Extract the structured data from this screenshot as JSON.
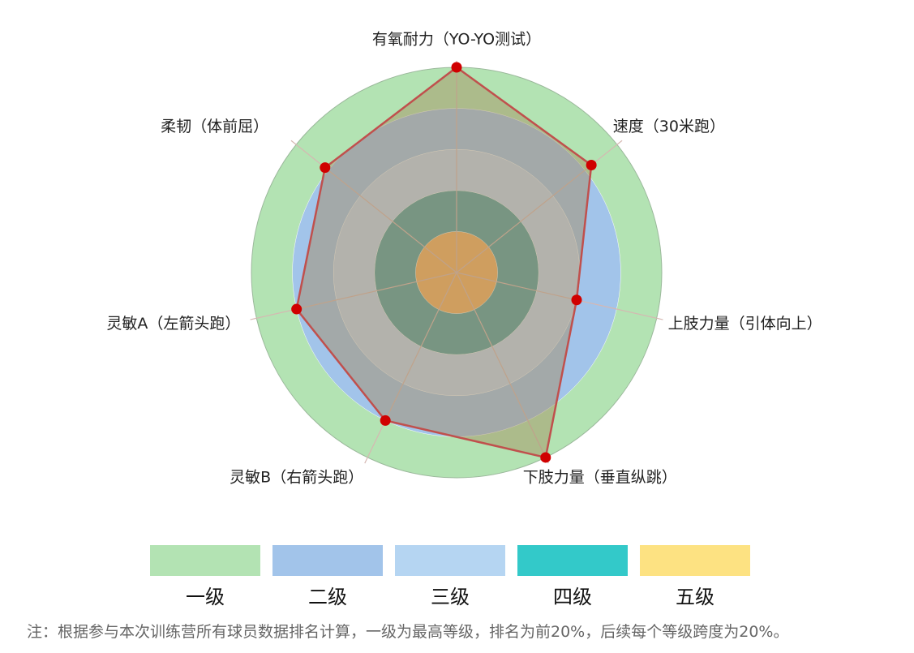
{
  "chart_data": {
    "type": "radar",
    "title": "",
    "axes": [
      "有氧耐力（YO-YO测试）",
      "速度（30米跑）",
      "上肢力量（引体向上）",
      "下肢力量（垂直纵跳）",
      "灵敏B（右箭头跑）",
      "灵敏A（左箭头跑）",
      "柔韧（体前屈）"
    ],
    "scale_max": 5,
    "levels": [
      {
        "label": "一级",
        "color": "#b3e3b3",
        "radius": 5
      },
      {
        "label": "二级",
        "color": "#a2c4ea",
        "radius": 4
      },
      {
        "label": "三级",
        "color": "#b5d5f2",
        "radius": 3
      },
      {
        "label": "四级",
        "color": "#33c9c9",
        "radius": 2
      },
      {
        "label": "五级",
        "color": "#fde282",
        "radius": 1
      }
    ],
    "series": [
      {
        "name": "",
        "values": [
          5.0,
          4.2,
          3.0,
          5.0,
          4.0,
          4.0,
          4.1
        ],
        "color": "#d00000"
      }
    ]
  },
  "legend": {
    "items": [
      {
        "label": "一级",
        "color": "#b3e3b3"
      },
      {
        "label": "二级",
        "color": "#a2c4ea"
      },
      {
        "label": "三级",
        "color": "#b5d5f2"
      },
      {
        "label": "四级",
        "color": "#33c9c9"
      },
      {
        "label": "五级",
        "color": "#fde282"
      }
    ]
  },
  "note": "注：根据参与本次训练营所有球员数据排名计算，一级为最高等级，排名为前20%，后续每个等级跨度为20%。"
}
